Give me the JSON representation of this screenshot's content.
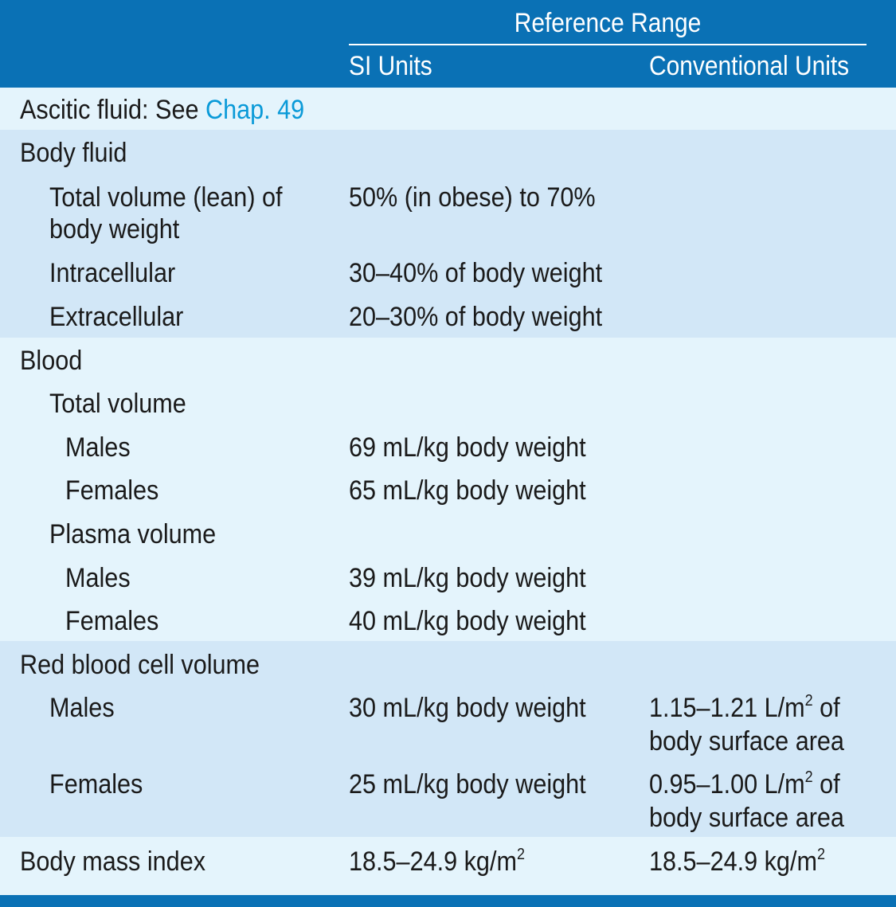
{
  "header": {
    "group_label": "Reference Range",
    "col_si": "SI Units",
    "col_conventional": "Conventional Units"
  },
  "rows": {
    "ascitic_label": "Ascitic fluid: See ",
    "ascitic_link": "Chap. 49",
    "body_fluid": "Body fluid",
    "total_volume_lean_l1": "Total volume (lean) of",
    "total_volume_lean_l2": "body weight",
    "total_volume_lean_si": "50% (in obese) to 70%",
    "intracellular": "Intracellular",
    "intracellular_si": "30–40% of body weight",
    "extracellular": "Extracellular",
    "extracellular_si": "20–30% of body weight",
    "blood": "Blood",
    "total_volume": "Total volume",
    "tv_males": "Males",
    "tv_males_si": "69 mL/kg body weight",
    "tv_females": "Females",
    "tv_females_si": "65 mL/kg body weight",
    "plasma_volume": "Plasma volume",
    "pv_males": "Males",
    "pv_males_si": "39 mL/kg body weight",
    "pv_females": "Females",
    "pv_females_si": "40 mL/kg body weight",
    "rbc_volume": "Red blood cell volume",
    "rbc_males": "Males",
    "rbc_males_si": "30 mL/kg body weight",
    "rbc_males_conv_a": "1.15–1.21 L/m",
    "rbc_males_conv_b": " of",
    "rbc_males_conv_l2": "body surface area",
    "rbc_females": "Females",
    "rbc_females_si": "25 mL/kg body weight",
    "rbc_females_conv_a": "0.95–1.00 L/m",
    "rbc_females_conv_b": " of",
    "rbc_females_conv_l2": "body surface area",
    "bmi": "Body mass index",
    "bmi_si": "18.5–24.9 kg/m",
    "bmi_conv": "18.5–24.9 kg/m",
    "superscript_2": "2"
  },
  "colors": {
    "header_blue": "#0a71b5",
    "light_band": "#e4f4fc",
    "mid_band": "#d2e7f7",
    "link": "#0a9ad8"
  }
}
